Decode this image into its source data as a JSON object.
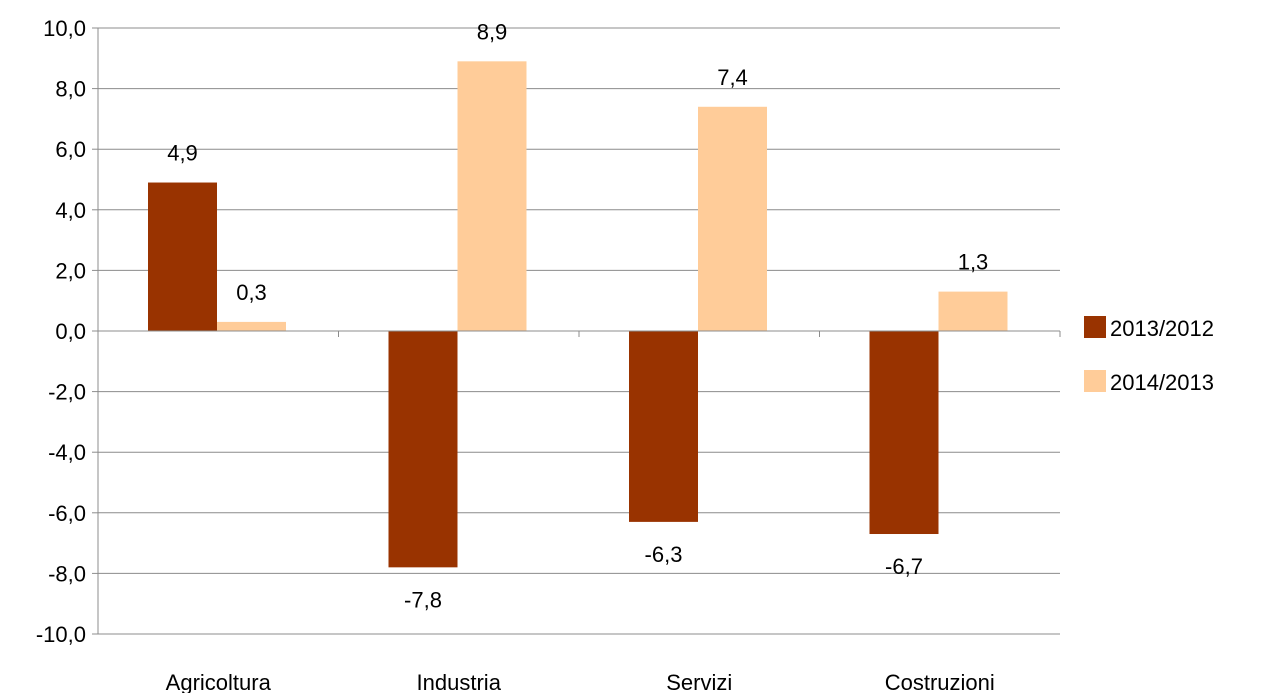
{
  "chart_data": {
    "type": "bar",
    "categories": [
      "Agricoltura",
      "Industria",
      "Servizi",
      "Costruzioni"
    ],
    "series": [
      {
        "name": "2013/2012",
        "values": [
          4.9,
          -7.8,
          -6.3,
          -6.7
        ],
        "labels": [
          "4,9",
          "-7,8",
          "-6,3",
          "-6,7"
        ],
        "color": "#993300"
      },
      {
        "name": "2014/2013",
        "values": [
          0.3,
          8.9,
          7.4,
          1.3
        ],
        "labels": [
          "0,3",
          "8,9",
          "7,4",
          "1,3"
        ],
        "color": "#ffcc99"
      }
    ],
    "ylim": [
      -10,
      10
    ],
    "yticks": [
      10,
      8,
      6,
      4,
      2,
      0,
      -2,
      -4,
      -6,
      -8,
      -10
    ],
    "ytick_labels": [
      "10,0",
      "8,0",
      "6,0",
      "4,0",
      "2,0",
      "0,0",
      "-2,0",
      "-4,0",
      "-6,0",
      "-8,0",
      "-10,0"
    ],
    "grid": true,
    "legend_position": "right",
    "title": "",
    "xlabel": "",
    "ylabel": ""
  }
}
